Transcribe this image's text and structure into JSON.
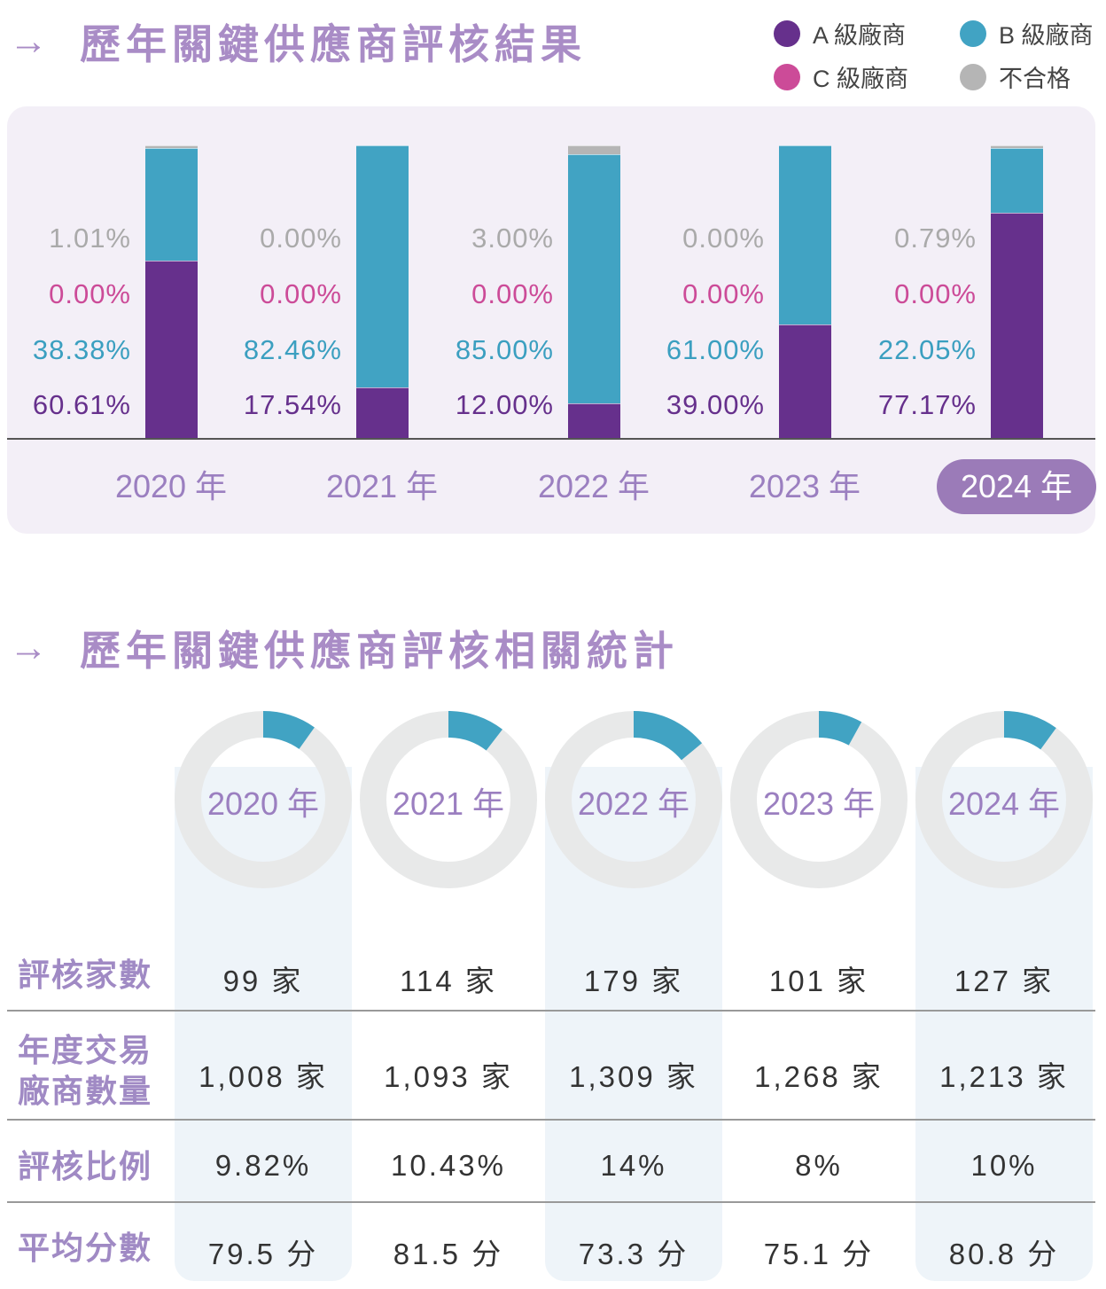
{
  "section1_title": "歷年關鍵供應商評核結果",
  "section2_title": "歷年關鍵供應商評核相關統計",
  "arrow": "→",
  "legend": [
    {
      "label": "A 級廠商",
      "color": "#66308c"
    },
    {
      "label": "B 級廠商",
      "color": "#41a3c3"
    },
    {
      "label": "C 級廠商",
      "color": "#cc4b98"
    },
    {
      "label": "不合格",
      "color": "#b5b5b5"
    }
  ],
  "chart_data": {
    "type": "bar",
    "stacked": true,
    "title": "歷年關鍵供應商評核結果",
    "categories": [
      "2020 年",
      "2021 年",
      "2022 年",
      "2023 年",
      "2024 年"
    ],
    "highlighted_category": "2024 年",
    "ylim": [
      0,
      100
    ],
    "series": [
      {
        "name": "A 級廠商",
        "color": "#66308c",
        "values": [
          60.61,
          17.54,
          12.0,
          39.0,
          77.17
        ],
        "labels": [
          "60.61%",
          "17.54%",
          "12.00%",
          "39.00%",
          "77.17%"
        ]
      },
      {
        "name": "B 級廠商",
        "color": "#41a3c3",
        "values": [
          38.38,
          82.46,
          85.0,
          61.0,
          22.05
        ],
        "labels": [
          "38.38%",
          "82.46%",
          "85.00%",
          "61.00%",
          "22.05%"
        ]
      },
      {
        "name": "C 級廠商",
        "color": "#cc4b98",
        "values": [
          0,
          0,
          0,
          0,
          0
        ],
        "labels": [
          "0.00%",
          "0.00%",
          "0.00%",
          "0.00%",
          "0.00%"
        ]
      },
      {
        "name": "不合格",
        "color": "#b5b5b5",
        "values": [
          1.01,
          0,
          3.0,
          0,
          0.79
        ],
        "labels": [
          "1.01%",
          "0.00%",
          "3.00%",
          "0.00%",
          "0.79%"
        ]
      }
    ]
  },
  "stats": {
    "years": [
      "2020 年",
      "2021 年",
      "2022 年",
      "2023 年",
      "2024 年"
    ],
    "ratio_values": [
      9.82,
      10.43,
      14,
      8,
      10
    ],
    "donut_colors": {
      "filled": "#41a3c3",
      "empty": "#e8e9e9"
    },
    "rows": [
      {
        "label": "評核家數",
        "values": [
          "99 家",
          "114 家",
          "179 家",
          "101 家",
          "127 家"
        ]
      },
      {
        "label": "年度交易\n廠商數量",
        "label_lines": [
          "年度交易",
          "廠商數量"
        ],
        "values": [
          "1,008 家",
          "1,093 家",
          "1,309 家",
          "1,268 家",
          "1,213 家"
        ]
      },
      {
        "label": "評核比例",
        "values": [
          "9.82%",
          "10.43%",
          "14%",
          "8%",
          "10%"
        ]
      },
      {
        "label": "平均分數",
        "values": [
          "79.5 分",
          "81.5 分",
          "73.3 分",
          "75.1 分",
          "80.8 分"
        ]
      }
    ]
  }
}
